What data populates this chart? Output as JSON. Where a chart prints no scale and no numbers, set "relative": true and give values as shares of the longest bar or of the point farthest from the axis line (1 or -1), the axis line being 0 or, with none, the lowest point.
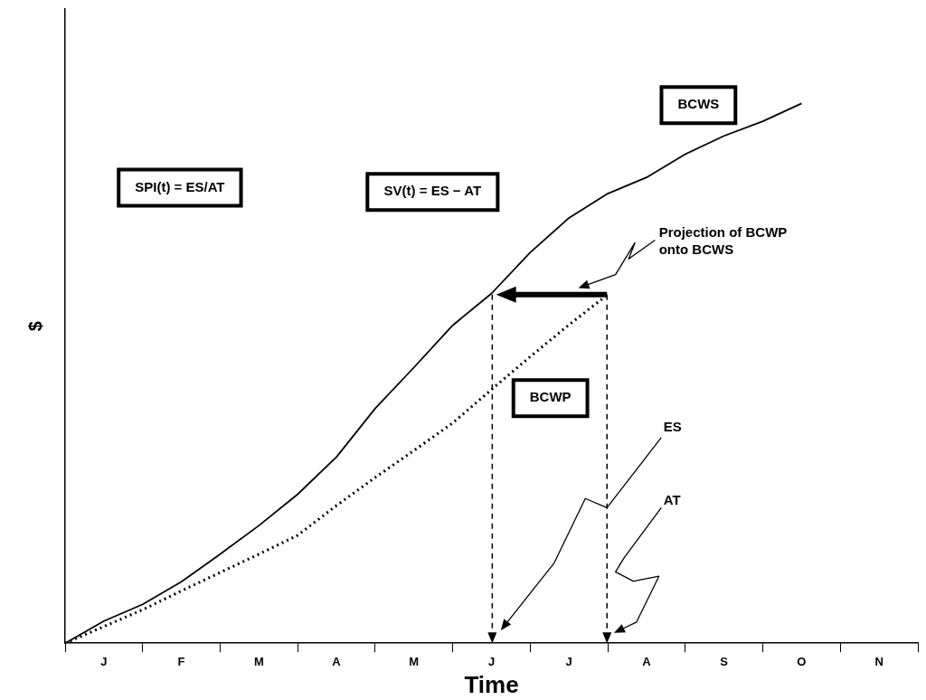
{
  "chart_data": {
    "type": "line",
    "xlabel": "Time",
    "ylabel": "$",
    "relative": true,
    "categories": [
      null,
      "J",
      null,
      "F",
      null,
      "M",
      null,
      "A",
      null,
      "M",
      null,
      "J",
      null,
      "J",
      null,
      "A",
      null,
      "S",
      null,
      "O",
      null,
      "N",
      null
    ],
    "series": [
      {
        "color": "#000000",
        "line_style": "solid",
        "values": [
          0,
          0.041,
          0.072,
          0.114,
          0.165,
          0.218,
          0.276,
          0.345,
          0.435,
          0.511,
          0.589,
          0.648,
          0.724,
          0.788,
          0.833,
          0.863,
          0.906,
          0.94,
          0.967,
          1,
          null,
          null,
          null
        ]
      },
      {
        "color": "#000000",
        "line_style": "dotted",
        "values": [
          0,
          0.031,
          0.062,
          0.097,
          0.131,
          0.165,
          0.2,
          0.255,
          0.307,
          0.357,
          0.408,
          0.47,
          0.531,
          0.59,
          0.646,
          null,
          null,
          null,
          null,
          null,
          null,
          null,
          null
        ]
      }
    ],
    "annotations": [
      "SPI(t) = ES/AT",
      "SV(t) = ES − AT",
      "BCWS",
      "Projection of BCWP onto BCWS",
      "BCWP",
      "ES",
      "AT"
    ],
    "grid": false,
    "legend": false,
    "marker": "none"
  }
}
